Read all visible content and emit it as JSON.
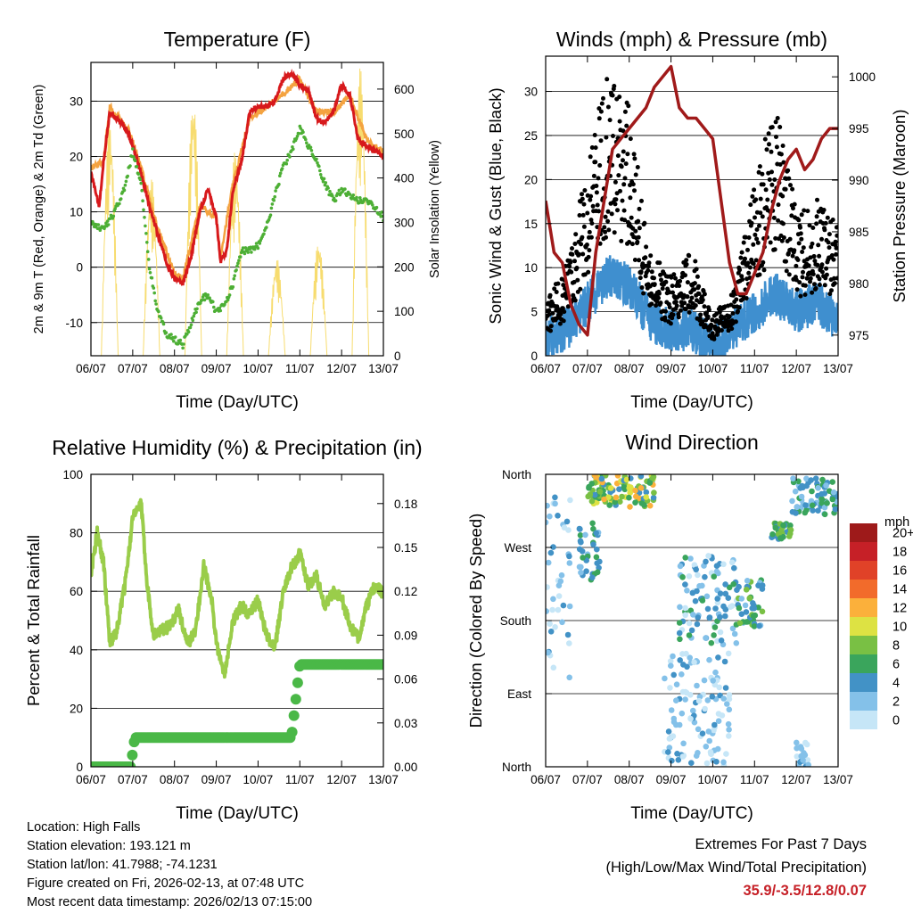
{
  "colors": {
    "temp_2m": "#d7191c",
    "temp_9m": "#f4a340",
    "dewpoint": "#4daf35",
    "solar": "#f7dc6f",
    "wind": "#3f8fcf",
    "gust": "#000000",
    "pressure": "#a01a1a",
    "rh": "#9acd4a",
    "precip": "#4ab847",
    "extremes": "#c62027"
  },
  "chart_data": [
    {
      "id": "temperature",
      "type": "line",
      "title": "Temperature (F)",
      "xlabel": "Time (Day/UTC)",
      "ylabel": "2m & 9m T (Red, Orange) & 2m Td (Green)",
      "y2label": "Solar Insolation (Yellow)",
      "x_ticks": [
        "06/07",
        "07/07",
        "08/07",
        "09/07",
        "10/07",
        "11/07",
        "12/07",
        "13/07"
      ],
      "ylim": [
        -16,
        37
      ],
      "y_ticks": [
        -10,
        0,
        10,
        20,
        30
      ],
      "y2lim": [
        0,
        660
      ],
      "y2_ticks": [
        0,
        100,
        200,
        300,
        400,
        500,
        600
      ],
      "series": [
        {
          "name": "2m T",
          "color_key": "temp_2m",
          "x": [
            0,
            0.1,
            0.2,
            0.3,
            0.45,
            0.6,
            0.75,
            0.9,
            1.0,
            1.2,
            1.4,
            1.6,
            1.8,
            2.0,
            2.2,
            2.4,
            2.6,
            2.8,
            3.0,
            3.1,
            3.25,
            3.4,
            3.6,
            3.8,
            4.0,
            4.2,
            4.4,
            4.6,
            4.8,
            5.0,
            5.2,
            5.4,
            5.6,
            5.8,
            6.0,
            6.2,
            6.4,
            6.6,
            6.8,
            7.0
          ],
          "values": [
            17,
            14,
            11,
            19,
            28,
            27,
            26,
            24,
            22,
            17,
            11,
            6,
            1,
            -2,
            -3,
            2,
            10,
            14,
            9,
            1,
            3,
            14,
            19,
            28,
            29,
            29,
            30,
            34,
            35,
            33,
            32,
            27,
            26,
            28,
            33,
            31,
            23,
            22,
            21,
            20
          ]
        },
        {
          "name": "9m T",
          "color_key": "temp_9m",
          "x": [
            0,
            0.3,
            0.45,
            0.9,
            1.2,
            1.6,
            2.0,
            2.2,
            2.6,
            3.0,
            3.1,
            3.4,
            3.8,
            4.4,
            5.0,
            5.4,
            5.8,
            6.2,
            6.6,
            7.0
          ],
          "values": [
            18,
            19,
            29,
            25,
            18,
            7,
            -1,
            -2,
            11,
            9,
            2,
            15,
            27,
            30,
            34,
            28,
            28,
            31,
            23,
            21
          ]
        },
        {
          "name": "2m Td",
          "color_key": "dewpoint",
          "x": [
            0,
            0.3,
            0.5,
            0.8,
            1.0,
            1.2,
            1.4,
            1.6,
            1.8,
            2.0,
            2.2,
            2.4,
            2.6,
            2.8,
            3.0,
            3.2,
            3.4,
            3.6,
            3.8,
            4.0,
            4.2,
            4.4,
            4.6,
            4.8,
            5.0,
            5.2,
            5.4,
            5.6,
            5.8,
            6.0,
            6.2,
            6.4,
            6.6,
            6.8,
            7.0
          ],
          "values": [
            8,
            7,
            9,
            14,
            21,
            15,
            0,
            -8,
            -12,
            -13,
            -14,
            -10,
            -6,
            -5,
            -8,
            -7,
            -3,
            3,
            3,
            4,
            7,
            13,
            18,
            21,
            25,
            22,
            19,
            15,
            12,
            14,
            13,
            12,
            12,
            11,
            9
          ]
        }
      ],
      "solar_series": {
        "name": "Solar Insolation",
        "color_key": "solar",
        "peaks": [
          {
            "day": 0.45,
            "value": 540
          },
          {
            "day": 1.45,
            "value": 400
          },
          {
            "day": 2.45,
            "value": 590
          },
          {
            "day": 3.45,
            "value": 460
          },
          {
            "day": 4.45,
            "value": 220
          },
          {
            "day": 5.45,
            "value": 260
          },
          {
            "day": 6.45,
            "value": 650
          }
        ]
      }
    },
    {
      "id": "winds",
      "type": "scatter",
      "title": "Winds (mph) & Pressure (mb)",
      "xlabel": "Time (Day/UTC)",
      "ylabel": "Sonic Wind & Gust (Blue, Black)",
      "y2label": "Station Pressure (Maroon)",
      "x_ticks": [
        "06/07",
        "07/07",
        "08/07",
        "09/07",
        "10/07",
        "11/07",
        "12/07",
        "13/07"
      ],
      "ylim": [
        0,
        34
      ],
      "y_ticks": [
        0,
        5,
        10,
        15,
        20,
        25,
        30
      ],
      "y2lim": [
        973,
        1002
      ],
      "y2_ticks": [
        975,
        980,
        985,
        990,
        995,
        1000
      ],
      "series": [
        {
          "name": "Gust envelope",
          "color_key": "gust",
          "x": [
            0,
            0.5,
            1.0,
            1.5,
            2.0,
            2.5,
            3.0,
            3.5,
            4.0,
            4.5,
            5.0,
            5.5,
            6.0,
            6.5,
            7.0
          ],
          "values": [
            4,
            7,
            15,
            22,
            19,
            8,
            6,
            8,
            3,
            5,
            13,
            20,
            11,
            12,
            11
          ]
        },
        {
          "name": "Sonic wind envelope",
          "color_key": "wind",
          "x": [
            0,
            0.5,
            1.0,
            1.5,
            2.0,
            2.5,
            3.0,
            3.5,
            4.0,
            4.5,
            5.0,
            5.5,
            6.0,
            6.5,
            7.0
          ],
          "values": [
            2,
            3,
            6,
            9,
            8,
            4,
            3,
            3,
            1,
            3,
            5,
            7,
            5,
            6,
            4
          ]
        },
        {
          "name": "Station pressure",
          "color_key": "pressure",
          "x": [
            0,
            0.2,
            0.4,
            0.6,
            0.8,
            1.0,
            1.2,
            1.4,
            1.6,
            1.8,
            2.0,
            2.2,
            2.4,
            2.6,
            2.8,
            3.0,
            3.2,
            3.4,
            3.6,
            3.8,
            4.0,
            4.2,
            4.4,
            4.6,
            4.8,
            5.0,
            5.2,
            5.4,
            5.6,
            5.8,
            6.0,
            6.2,
            6.4,
            6.6,
            6.8,
            7.0
          ],
          "values": [
            988,
            983,
            982,
            978,
            976,
            975,
            983,
            988,
            993,
            994,
            995,
            996,
            997,
            999,
            1000,
            1001,
            997,
            996,
            996,
            995,
            994,
            988,
            982,
            979,
            979,
            981,
            983,
            987,
            990,
            992,
            993,
            991,
            992,
            994,
            995,
            995
          ]
        }
      ]
    },
    {
      "id": "humidity",
      "type": "line",
      "title": "Relative Humidity (%) & Precipitation (in)",
      "xlabel": "Time (Day/UTC)",
      "ylabel": "Percent & Total Rainfall",
      "x_ticks": [
        "06/07",
        "07/07",
        "08/07",
        "09/07",
        "10/07",
        "11/07",
        "12/07",
        "13/07"
      ],
      "ylim": [
        0,
        100
      ],
      "y_ticks": [
        0,
        20,
        40,
        60,
        80,
        100
      ],
      "y2lim": [
        0,
        0.2
      ],
      "y2_ticks": [
        "0.00",
        "0.03",
        "0.06",
        "0.09",
        "0.12",
        "0.15",
        "0.18"
      ],
      "series": [
        {
          "name": "Relative Humidity",
          "color_key": "rh",
          "x": [
            0,
            0.15,
            0.3,
            0.45,
            0.6,
            0.8,
            1.0,
            1.2,
            1.35,
            1.5,
            1.7,
            1.9,
            2.1,
            2.3,
            2.5,
            2.7,
            2.9,
            3.0,
            3.2,
            3.4,
            3.6,
            3.8,
            4.0,
            4.2,
            4.4,
            4.6,
            4.8,
            5.0,
            5.2,
            5.4,
            5.6,
            5.8,
            6.0,
            6.2,
            6.4,
            6.6,
            6.8,
            7.0
          ],
          "values": [
            66,
            80,
            70,
            43,
            45,
            61,
            85,
            90,
            62,
            45,
            47,
            48,
            54,
            42,
            46,
            69,
            56,
            42,
            32,
            50,
            55,
            52,
            57,
            45,
            40,
            60,
            68,
            73,
            62,
            65,
            55,
            60,
            58,
            48,
            44,
            55,
            62,
            59
          ]
        },
        {
          "name": "Total Precipitation (in)",
          "color_key": "precip",
          "x": [
            0,
            0.95,
            1.05,
            4.8,
            4.85,
            4.9,
            5.0,
            7.0
          ],
          "values": [
            0.0,
            0.0,
            0.02,
            0.02,
            0.04,
            0.06,
            0.07,
            0.07
          ]
        }
      ]
    },
    {
      "id": "wind_direction",
      "type": "scatter",
      "title": "Wind Direction",
      "xlabel": "Time (Day/UTC)",
      "ylabel": "Direction (Colored By Speed)",
      "x_ticks": [
        "06/07",
        "07/07",
        "08/07",
        "09/07",
        "10/07",
        "11/07",
        "12/07",
        "13/07"
      ],
      "y_ticks": [
        "North",
        "East",
        "South",
        "West",
        "North"
      ],
      "ylim": [
        0,
        360
      ],
      "legend_title": "mph",
      "legend": [
        "0",
        "2",
        "4",
        "6",
        "8",
        "10",
        "12",
        "14",
        "16",
        "18",
        "20+"
      ],
      "legend_colors": [
        "#c6e6f7",
        "#84c1e9",
        "#4292c6",
        "#3aa55c",
        "#79c044",
        "#dde243",
        "#fbb03b",
        "#f26b2b",
        "#e04228",
        "#c62027",
        "#9e1a1a"
      ],
      "clusters": [
        {
          "x": [
            0.0,
            0.6
          ],
          "dir": [
            100,
            340
          ],
          "speed": [
            0,
            4
          ]
        },
        {
          "x": [
            0.8,
            1.3
          ],
          "dir": [
            230,
            300
          ],
          "speed": [
            2,
            6
          ]
        },
        {
          "x": [
            1.0,
            2.6
          ],
          "dir": [
            320,
            360
          ],
          "speed": [
            4,
            12
          ]
        },
        {
          "x": [
            2.8,
            4.4
          ],
          "dir": [
            0,
            140
          ],
          "speed": [
            0,
            4
          ]
        },
        {
          "x": [
            3.2,
            4.6
          ],
          "dir": [
            150,
            260
          ],
          "speed": [
            0,
            6
          ]
        },
        {
          "x": [
            4.6,
            5.2
          ],
          "dir": [
            170,
            230
          ],
          "speed": [
            2,
            8
          ]
        },
        {
          "x": [
            5.4,
            5.9
          ],
          "dir": [
            280,
            300
          ],
          "speed": [
            4,
            8
          ]
        },
        {
          "x": [
            5.9,
            7.0
          ],
          "dir": [
            310,
            355
          ],
          "speed": [
            2,
            6
          ]
        },
        {
          "x": [
            6.0,
            6.3
          ],
          "dir": [
            0,
            30
          ],
          "speed": [
            0,
            4
          ]
        }
      ]
    }
  ],
  "info": {
    "location": "Location: High Falls",
    "elevation": "Station elevation: 193.121 m",
    "latlon": "Station lat/lon: 41.7988; -74.1231",
    "created": "Figure created on Fri, 2026-02-13, at 07:48 UTC",
    "latest": "Most recent data timestamp: 2026/02/13 07:15:00"
  },
  "extremes": {
    "title": "Extremes For Past 7 Days",
    "subtitle": "(High/Low/Max Wind/Total Precipitation)",
    "values": "35.9/-3.5/12.8/0.07"
  }
}
